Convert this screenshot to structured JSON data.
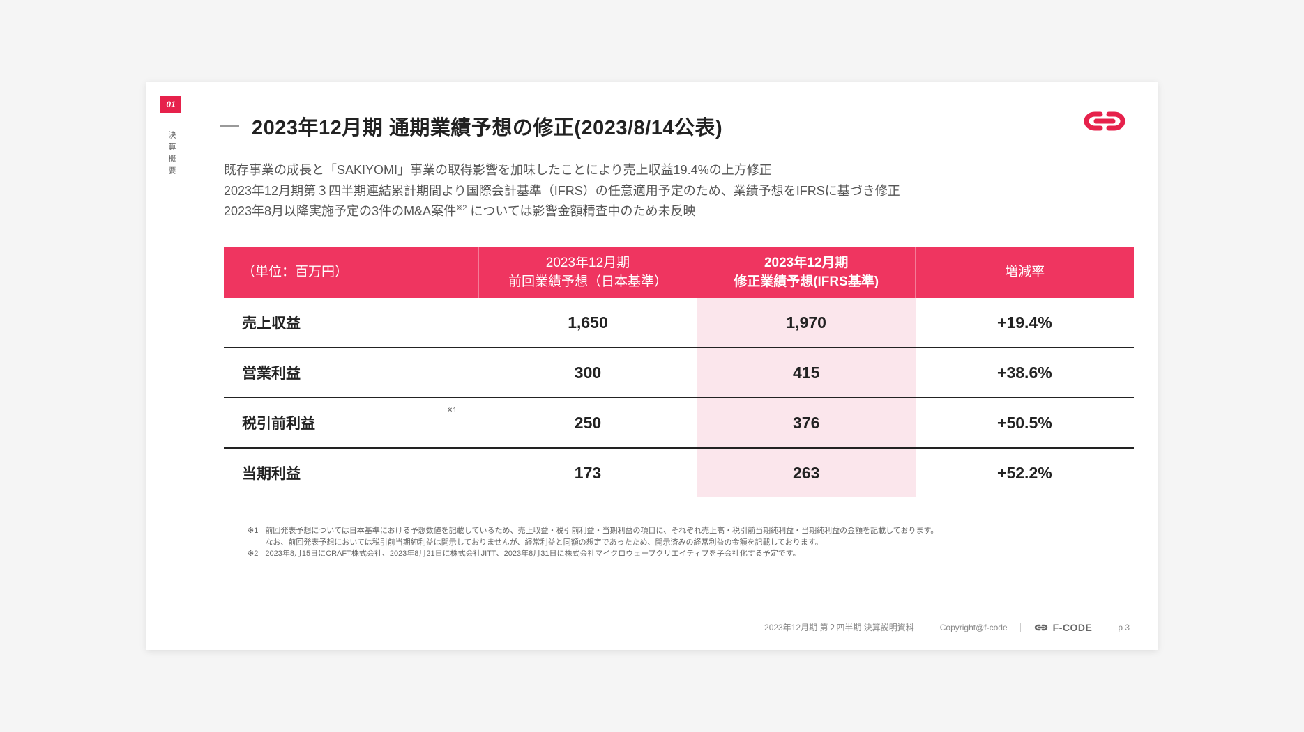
{
  "section": {
    "number": "01",
    "vertical_label": "決算概要"
  },
  "title": "2023年12月期 通期業績予想の修正(2023/8/14公表)",
  "description": {
    "line1": "既存事業の成長と「SAKIYOMI」事業の取得影響を加味したことにより売上収益19.4%の上方修正",
    "line2": "2023年12月期第３四半期連結累計期間より国際会計基準（IFRS）の任意適用予定のため、業績予想をIFRSに基づき修正",
    "line3_a": "2023年8月以降実施予定の3件のM&A案件",
    "line3_sup": "※2",
    "line3_b": " については影響金額精査中のため未反映"
  },
  "columns": {
    "unit": "（単位：百万円）",
    "col1_a": "2023年12月期",
    "col1_b": "前回業績予想（日本基準）",
    "col2_a": "2023年12月期",
    "col2_b": "修正業績予想(IFRS基準)",
    "col3": "増減率"
  },
  "rows": [
    {
      "label": "売上収益",
      "prev": "1,650",
      "revised": "1,970",
      "change": "+19.4%",
      "note": ""
    },
    {
      "label": "営業利益",
      "prev": "300",
      "revised": "415",
      "change": "+38.6%",
      "note": ""
    },
    {
      "label": "税引前利益",
      "prev": "250",
      "revised": "376",
      "change": "+50.5%",
      "note": "※1"
    },
    {
      "label": "当期利益",
      "prev": "173",
      "revised": "263",
      "change": "+52.2%",
      "note": ""
    }
  ],
  "footnotes": {
    "n1_key": "※1",
    "n1_a": "前回発表予想については日本基準における予想数値を記載しているため、売上収益・税引前利益・当期利益の項目に、それぞれ売上高・税引前当期純利益・当期純利益の金額を記載しております。",
    "n1_b": "なお、前回発表予想においては税引前当期純利益は開示しておりませんが、経常利益と同額の想定であったため、開示済みの経常利益の金額を記載しております。",
    "n2_key": "※2",
    "n2": "2023年8月15日にCRAFT株式会社、2023年8月21日に株式会社JITT、2023年8月31日に株式会社マイクロウェーブクリエイティブを子会社化する予定です。"
  },
  "footer": {
    "doc": "2023年12月期 第２四半期 決算説明資料",
    "copyright": "Copyright@f-code",
    "brand": "F-CODE",
    "page": "p 3"
  },
  "colors": {
    "accent": "#e6214b",
    "header_bg": "#ef3560",
    "highlight_bg": "#fbe6ec",
    "text": "#222222",
    "muted": "#666666"
  }
}
